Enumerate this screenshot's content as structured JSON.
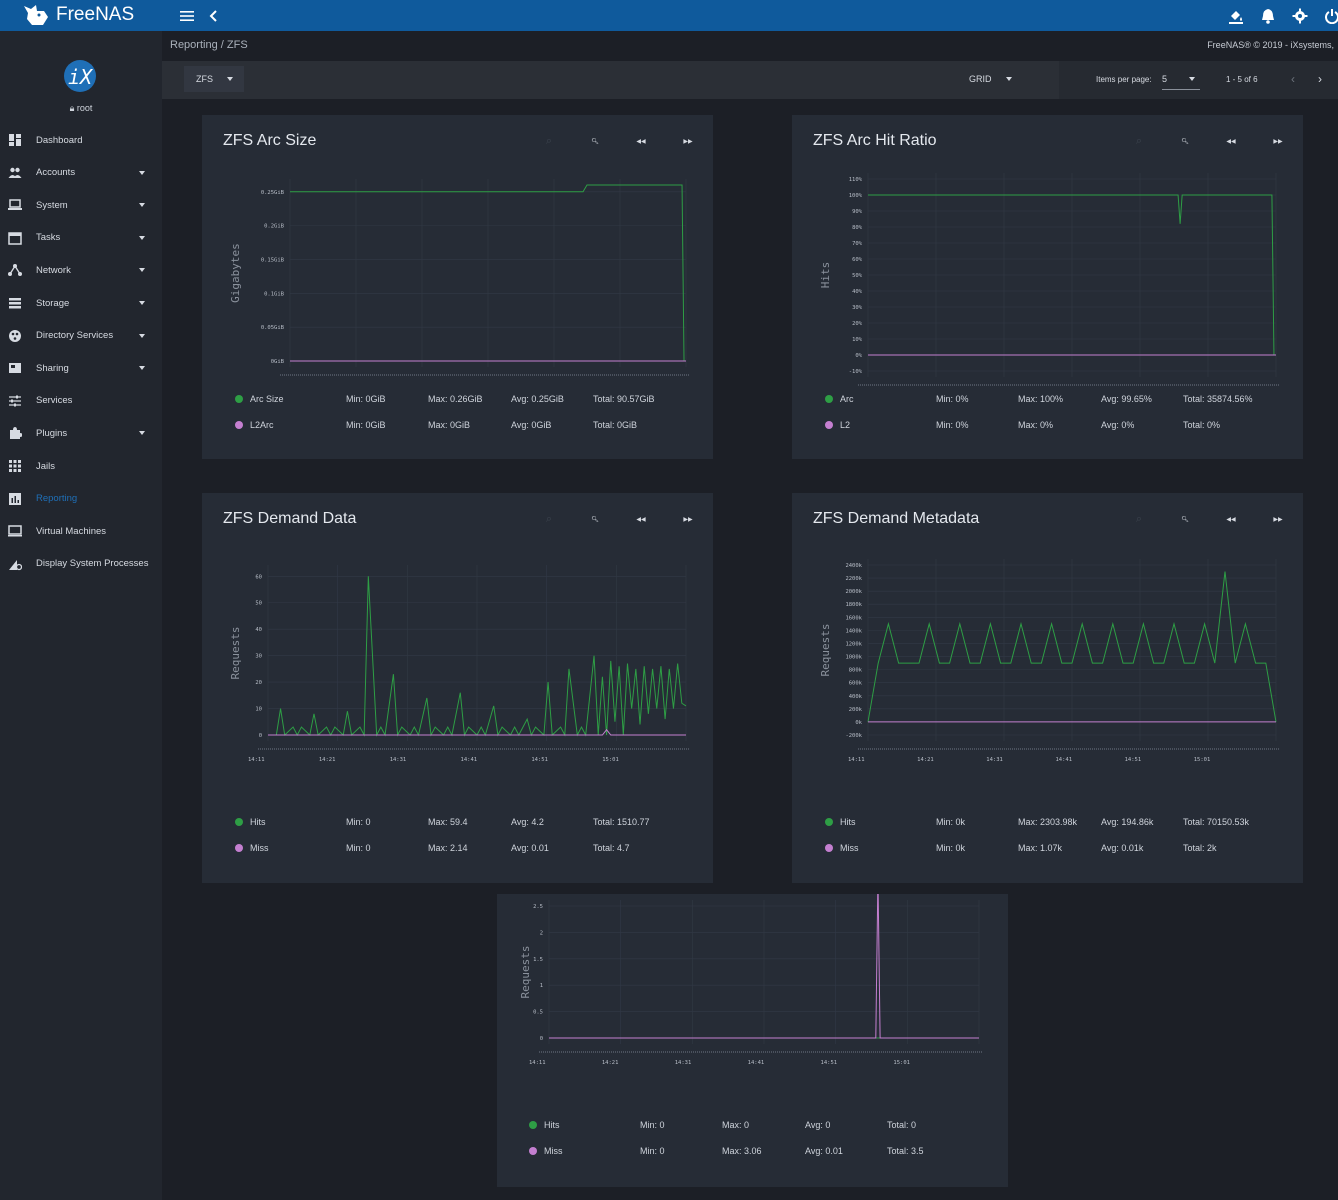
{
  "app": {
    "brand": "FreeNAS",
    "user": "root",
    "copyright": "FreeNAS® © 2019 - iXsystems,"
  },
  "breadcrumb": {
    "parent": "Reporting",
    "sep": "/",
    "current": "ZFS"
  },
  "toolbar": {
    "report_select": "ZFS",
    "layout_select": "GRID",
    "items_per_page_label": "Items per page:",
    "items_per_page": "5",
    "range": "1 - 5 of 6"
  },
  "sidebar": {
    "items": [
      {
        "label": "Dashboard",
        "icon": "dashboard-icon",
        "caret": false
      },
      {
        "label": "Accounts",
        "icon": "people-icon",
        "caret": true
      },
      {
        "label": "System",
        "icon": "laptop-icon",
        "caret": true
      },
      {
        "label": "Tasks",
        "icon": "calendar-icon",
        "caret": true
      },
      {
        "label": "Network",
        "icon": "network-icon",
        "caret": true
      },
      {
        "label": "Storage",
        "icon": "storage-icon",
        "caret": true
      },
      {
        "label": "Directory Services",
        "icon": "directory-icon",
        "caret": true
      },
      {
        "label": "Sharing",
        "icon": "sharing-icon",
        "caret": true
      },
      {
        "label": "Services",
        "icon": "tune-icon",
        "caret": false
      },
      {
        "label": "Plugins",
        "icon": "puzzle-icon",
        "caret": true
      },
      {
        "label": "Jails",
        "icon": "apps-icon",
        "caret": false
      },
      {
        "label": "Reporting",
        "icon": "chart-icon",
        "caret": false,
        "active": true
      },
      {
        "label": "Virtual Machines",
        "icon": "computer-icon",
        "caret": false
      },
      {
        "label": "Display System Processes",
        "icon": "processes-icon",
        "caret": false
      }
    ]
  },
  "colors": {
    "topbar": "#0f5a9c",
    "series_green": "#2e9e45",
    "series_purple": "#c47fd0",
    "active_link": "#1f6fb7"
  },
  "panels": [
    {
      "title": "ZFS Arc Size",
      "legend": [
        {
          "name": "Arc Size",
          "min": "Min: 0GiB",
          "max": "Max: 0.26GiB",
          "avg": "Avg: 0.25GiB",
          "total": "Total: 90.57GiB"
        },
        {
          "name": "L2Arc",
          "min": "Min: 0GiB",
          "max": "Max: 0GiB",
          "avg": "Avg: 0GiB",
          "total": "Total: 0GiB"
        }
      ]
    },
    {
      "title": "ZFS Arc Hit Ratio",
      "legend": [
        {
          "name": "Arc",
          "min": "Min: 0%",
          "max": "Max: 100%",
          "avg": "Avg: 99.65%",
          "total": "Total: 35874.56%"
        },
        {
          "name": "L2",
          "min": "Min: 0%",
          "max": "Max: 0%",
          "avg": "Avg: 0%",
          "total": "Total: 0%"
        }
      ]
    },
    {
      "title": "ZFS Demand Data",
      "legend": [
        {
          "name": "Hits",
          "min": "Min: 0",
          "max": "Max: 59.4",
          "avg": "Avg: 4.2",
          "total": "Total: 1510.77"
        },
        {
          "name": "Miss",
          "min": "Min: 0",
          "max": "Max: 2.14",
          "avg": "Avg: 0.01",
          "total": "Total: 4.7"
        }
      ]
    },
    {
      "title": "ZFS Demand Metadata",
      "legend": [
        {
          "name": "Hits",
          "min": "Min: 0k",
          "max": "Max: 2303.98k",
          "avg": "Avg: 194.86k",
          "total": "Total: 70150.53k"
        },
        {
          "name": "Miss",
          "min": "Min: 0k",
          "max": "Max: 1.07k",
          "avg": "Avg: 0.01k",
          "total": "Total: 2k"
        }
      ]
    },
    {
      "title": "",
      "legend": [
        {
          "name": "Hits",
          "min": "Min: 0",
          "max": "Max: 0",
          "avg": "Avg: 0",
          "total": "Total: 0"
        },
        {
          "name": "Miss",
          "min": "Min: 0",
          "max": "Max: 3.06",
          "avg": "Avg: 0.01",
          "total": "Total: 3.5"
        }
      ]
    }
  ],
  "chart_data": [
    {
      "type": "line",
      "ylabel": "Gigabytes",
      "ylim": [
        0,
        0.26
      ],
      "x_ticks": [],
      "y_ticks": [
        "0.25GiB",
        "0.2GiB",
        "0.15GiB",
        "0.1GiB",
        "0.05GiB",
        "0GiB"
      ],
      "y_tick_values": [
        0.25,
        0.2,
        0.15,
        0.1,
        0.05,
        0
      ],
      "series": [
        {
          "name": "Arc Size",
          "color": "#2e9e45",
          "x": [
            0,
            0.74,
            0.75,
            0.99,
            0.995,
            1
          ],
          "values": [
            0.25,
            0.25,
            0.26,
            0.26,
            0,
            0
          ]
        },
        {
          "name": "L2Arc",
          "color": "#c47fd0",
          "x": [
            0,
            1
          ],
          "values": [
            0,
            0
          ]
        }
      ]
    },
    {
      "type": "line",
      "ylabel": "Hits",
      "ylim": [
        -10,
        110
      ],
      "x_ticks": [],
      "y_ticks": [
        "110%",
        "100%",
        "90%",
        "80%",
        "70%",
        "60%",
        "50%",
        "40%",
        "30%",
        "20%",
        "10%",
        "0%",
        "-10%"
      ],
      "y_tick_values": [
        110,
        100,
        90,
        80,
        70,
        60,
        50,
        40,
        30,
        20,
        10,
        0,
        -10
      ],
      "series": [
        {
          "name": "Arc",
          "color": "#2e9e45",
          "x": [
            0,
            0.76,
            0.765,
            0.77,
            0.775,
            0.99,
            0.995,
            1
          ],
          "values": [
            100,
            100,
            82,
            100,
            100,
            100,
            0,
            0
          ]
        },
        {
          "name": "L2",
          "color": "#c47fd0",
          "x": [
            0,
            1
          ],
          "values": [
            0,
            0
          ]
        }
      ]
    },
    {
      "type": "line",
      "ylabel": "Requests",
      "ylim": [
        0,
        62
      ],
      "x_ticks": [
        "14:11",
        "14:21",
        "14:31",
        "14:41",
        "14:51",
        "15:01"
      ],
      "y_ticks": [
        "60",
        "50",
        "40",
        "30",
        "20",
        "10",
        "0"
      ],
      "y_tick_values": [
        60,
        50,
        40,
        30,
        20,
        10,
        0
      ],
      "series": [
        {
          "name": "Hits",
          "color": "#2e9e45",
          "x": [
            0,
            0.02,
            0.03,
            0.04,
            0.06,
            0.07,
            0.08,
            0.1,
            0.11,
            0.12,
            0.14,
            0.15,
            0.16,
            0.18,
            0.19,
            0.2,
            0.22,
            0.23,
            0.24,
            0.26,
            0.27,
            0.28,
            0.3,
            0.31,
            0.32,
            0.34,
            0.35,
            0.36,
            0.38,
            0.39,
            0.4,
            0.42,
            0.43,
            0.44,
            0.46,
            0.47,
            0.48,
            0.5,
            0.51,
            0.52,
            0.54,
            0.55,
            0.56,
            0.58,
            0.59,
            0.6,
            0.62,
            0.63,
            0.64,
            0.66,
            0.67,
            0.68,
            0.7,
            0.71,
            0.72,
            0.74,
            0.75,
            0.76,
            0.78,
            0.79,
            0.8,
            0.81,
            0.82,
            0.83,
            0.84,
            0.85,
            0.86,
            0.87,
            0.88,
            0.89,
            0.9,
            0.91,
            0.92,
            0.93,
            0.94,
            0.95,
            0.96,
            0.97,
            0.98,
            0.99,
            1
          ],
          "values": [
            0,
            0,
            10,
            0,
            3,
            0,
            3,
            0,
            8,
            0,
            3,
            0,
            3,
            0,
            9,
            0,
            3,
            0,
            60,
            0,
            3,
            0,
            23,
            0,
            3,
            0,
            3,
            0,
            14,
            0,
            3,
            0,
            3,
            0,
            16,
            0,
            3,
            0,
            3,
            0,
            11,
            0,
            3,
            0,
            3,
            0,
            6,
            0,
            3,
            0,
            20,
            0,
            3,
            0,
            25,
            0,
            3,
            0,
            30,
            0,
            22,
            0,
            28,
            5,
            26,
            0,
            27,
            10,
            25,
            4,
            26,
            8,
            25,
            10,
            26,
            6,
            25,
            10,
            27,
            12,
            11
          ]
        },
        {
          "name": "Miss",
          "color": "#c47fd0",
          "x": [
            0,
            0.8,
            0.81,
            0.82,
            1
          ],
          "values": [
            0,
            0,
            2,
            0,
            0
          ]
        }
      ]
    },
    {
      "type": "line",
      "ylabel": "Requests",
      "ylim": [
        -200,
        2400
      ],
      "x_ticks": [
        "14:11",
        "14:21",
        "14:31",
        "14:41",
        "14:51",
        "15:01"
      ],
      "y_ticks": [
        "2400k",
        "2200k",
        "2000k",
        "1800k",
        "1600k",
        "1400k",
        "1200k",
        "1000k",
        "800k",
        "600k",
        "400k",
        "200k",
        "0k",
        "-200k"
      ],
      "y_tick_values": [
        2400,
        2200,
        2000,
        1800,
        1600,
        1400,
        1200,
        1000,
        800,
        600,
        400,
        200,
        0,
        -200
      ],
      "series": [
        {
          "name": "Hits",
          "color": "#2e9e45",
          "pattern": "periodic-spikes",
          "x": [
            0,
            0.025,
            0.05,
            0.075,
            0.1,
            0.125,
            0.15,
            0.175,
            0.2,
            0.225,
            0.25,
            0.275,
            0.3,
            0.325,
            0.35,
            0.375,
            0.4,
            0.425,
            0.45,
            0.475,
            0.5,
            0.525,
            0.55,
            0.575,
            0.6,
            0.625,
            0.65,
            0.675,
            0.7,
            0.725,
            0.75,
            0.775,
            0.8,
            0.825,
            0.85,
            0.875,
            0.9,
            0.925,
            0.95,
            0.975,
            1
          ],
          "values": [
            0,
            900,
            1500,
            900,
            900,
            900,
            1500,
            900,
            900,
            1500,
            900,
            900,
            1500,
            900,
            900,
            1500,
            900,
            900,
            1500,
            900,
            900,
            1500,
            900,
            900,
            1500,
            900,
            900,
            1500,
            900,
            900,
            1500,
            900,
            900,
            1500,
            900,
            2300,
            900,
            1500,
            900,
            900,
            0
          ]
        },
        {
          "name": "Miss",
          "color": "#c47fd0",
          "x": [
            0,
            1
          ],
          "values": [
            0,
            0
          ]
        }
      ]
    },
    {
      "type": "line",
      "ylabel": "Requests",
      "ylim": [
        0,
        2.5
      ],
      "x_ticks": [
        "14:11",
        "14:21",
        "14:31",
        "14:41",
        "14:51",
        "15:01"
      ],
      "y_ticks": [
        "2.5",
        "2",
        "1.5",
        "1",
        "0.5",
        "0"
      ],
      "y_tick_values": [
        2.5,
        2,
        1.5,
        1,
        0.5,
        0
      ],
      "series": [
        {
          "name": "Hits",
          "color": "#2e9e45",
          "x": [
            0,
            1
          ],
          "values": [
            0,
            0
          ]
        },
        {
          "name": "Miss",
          "color": "#c47fd0",
          "x": [
            0,
            0.76,
            0.765,
            0.77,
            1
          ],
          "values": [
            0,
            0,
            3.06,
            0,
            0
          ]
        }
      ]
    }
  ]
}
